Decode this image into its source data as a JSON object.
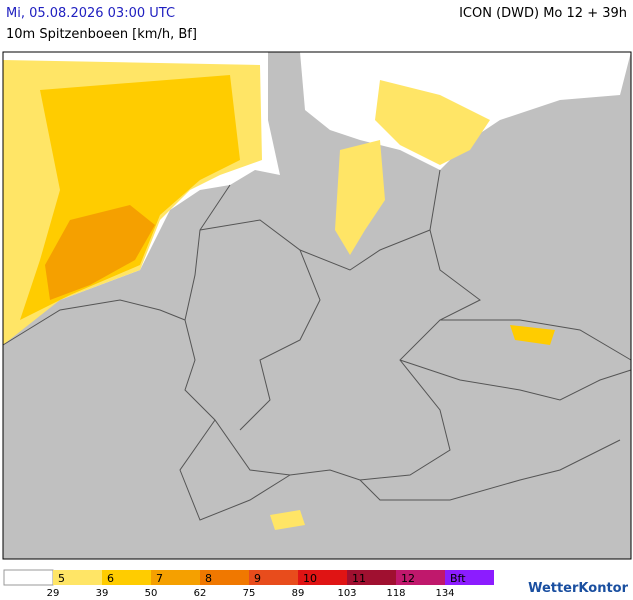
{
  "header": {
    "title": "Mi, 05.08.2026 03:00 UTC",
    "model": "ICON (DWD) Mo 12 + 39h",
    "subtitle": "10m Spitzenboeen [km/h, Bf]"
  },
  "legend": {
    "entries": [
      {
        "label": "5",
        "color": "#ffe566"
      },
      {
        "label": "6",
        "color": "#ffcc00"
      },
      {
        "label": "7",
        "color": "#f5a000"
      },
      {
        "label": "8",
        "color": "#f07800"
      },
      {
        "label": "9",
        "color": "#e84c1c"
      },
      {
        "label": "10",
        "color": "#e01414"
      },
      {
        "label": "11",
        "color": "#a01030"
      },
      {
        "label": "12",
        "color": "#c0186c"
      },
      {
        "label": "Bft",
        "color": "#8c1cff"
      }
    ],
    "thresholds": [
      29,
      39,
      50,
      62,
      75,
      89,
      103,
      118,
      134
    ]
  },
  "brand": "WetterKontor"
}
